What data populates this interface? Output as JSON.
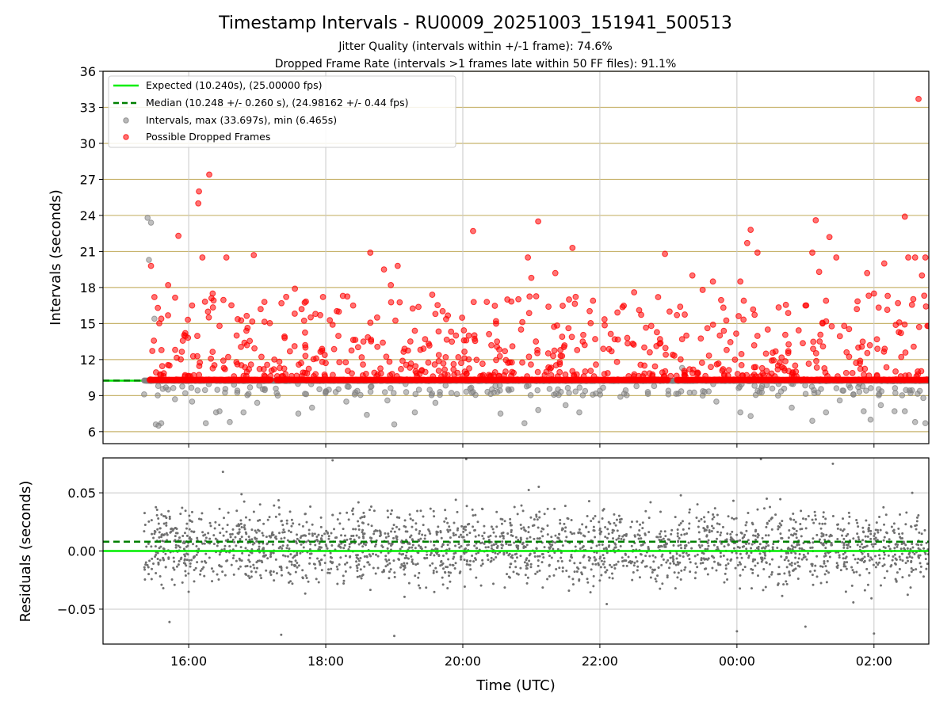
{
  "title": "Timestamp Intervals - RU0009_20251003_151941_500513",
  "subtitle1": "Jitter Quality (intervals within +/-1 frame): 74.6%",
  "subtitle2": "Dropped Frame Rate (intervals >1 frames late within 50 FF files): 91.1%",
  "colors": {
    "expected": "#00ee00",
    "median": "#008000",
    "normal_points": "#808080",
    "dropped_points": "#ff0000",
    "hgrid_top": "#c8b46e",
    "vgrid": "#c8c8c8"
  },
  "chart_data": [
    {
      "id": "intervals",
      "type": "scatter",
      "ylabel": "Intervals (seconds)",
      "xlim_hours": [
        14.75,
        26.8
      ],
      "ylim": [
        5.0,
        36.0
      ],
      "yticks": [
        6,
        9,
        12,
        15,
        18,
        21,
        24,
        27,
        30,
        33,
        36
      ],
      "ytick_labels": [
        "6",
        "9",
        "12",
        "15",
        "18",
        "21",
        "24",
        "27",
        "30",
        "33",
        "36"
      ],
      "expected_value": 10.24,
      "median_value": 10.248,
      "legend": {
        "position": "upper-left",
        "entries": [
          {
            "label": "Expected (10.240s), (25.00000 fps)",
            "style": "solid-line",
            "color": "#00ee00"
          },
          {
            "label": "Median (10.248 +/- 0.260 s), (24.98162 +/- 0.44 fps)",
            "style": "dashed-line",
            "color": "#008000"
          },
          {
            "label": "Intervals, max (33.697s), min (6.465s)",
            "style": "marker",
            "color": "#808080"
          },
          {
            "label": "Possible Dropped Frames",
            "style": "marker",
            "color": "#ff0000"
          }
        ]
      },
      "time_range_hours": [
        15.35,
        26.8
      ],
      "dropped_baseline_value": 10.29,
      "dropped_outliers": [
        [
          15.45,
          19.8
        ],
        [
          15.5,
          17.2
        ],
        [
          15.55,
          16.3
        ],
        [
          15.6,
          15.4
        ],
        [
          15.7,
          18.2
        ],
        [
          15.85,
          22.3
        ],
        [
          15.95,
          14.2
        ],
        [
          16.05,
          16.5
        ],
        [
          16.15,
          26.0
        ],
        [
          16.14,
          25.0
        ],
        [
          16.2,
          20.5
        ],
        [
          16.3,
          27.4
        ],
        [
          16.35,
          17.5
        ],
        [
          16.45,
          14.8
        ],
        [
          16.55,
          20.5
        ],
        [
          16.7,
          14.0
        ],
        [
          16.85,
          13.2
        ],
        [
          16.95,
          20.7
        ],
        [
          17.05,
          16.2
        ],
        [
          17.25,
          12.0
        ],
        [
          17.4,
          13.8
        ],
        [
          17.55,
          17.9
        ],
        [
          17.7,
          13.2
        ],
        [
          17.85,
          15.8
        ],
        [
          17.95,
          11.8
        ],
        [
          18.1,
          14.9
        ],
        [
          18.25,
          17.3
        ],
        [
          18.4,
          16.5
        ],
        [
          18.55,
          13.5
        ],
        [
          18.65,
          20.9
        ],
        [
          18.75,
          15.5
        ],
        [
          18.85,
          19.5
        ],
        [
          18.95,
          18.2
        ],
        [
          19.05,
          19.8
        ],
        [
          19.15,
          12.9
        ],
        [
          19.3,
          14.4
        ],
        [
          19.45,
          13.7
        ],
        [
          19.6,
          15.8
        ],
        [
          19.75,
          12.2
        ],
        [
          19.9,
          14.0
        ],
        [
          20.05,
          13.6
        ],
        [
          20.15,
          22.7
        ],
        [
          20.35,
          16.8
        ],
        [
          20.5,
          13.5
        ],
        [
          20.65,
          17.0
        ],
        [
          20.85,
          14.5
        ],
        [
          20.95,
          20.5
        ],
        [
          21.0,
          18.8
        ],
        [
          21.1,
          23.5
        ],
        [
          21.25,
          16.4
        ],
        [
          21.35,
          19.2
        ],
        [
          21.45,
          13.9
        ],
        [
          21.55,
          17.0
        ],
        [
          21.6,
          21.3
        ],
        [
          21.75,
          13.5
        ],
        [
          21.9,
          16.9
        ],
        [
          22.05,
          12.9
        ],
        [
          22.25,
          11.8
        ],
        [
          22.4,
          13.8
        ],
        [
          22.5,
          17.6
        ],
        [
          22.65,
          11.5
        ],
        [
          22.75,
          14.8
        ],
        [
          22.85,
          17.2
        ],
        [
          22.95,
          20.8
        ],
        [
          23.2,
          13.7
        ],
        [
          23.35,
          19.0
        ],
        [
          23.5,
          17.8
        ],
        [
          23.65,
          18.5
        ],
        [
          23.75,
          14.0
        ],
        [
          23.85,
          12.8
        ],
        [
          24.05,
          18.5
        ],
        [
          24.1,
          16.9
        ],
        [
          24.15,
          21.7
        ],
        [
          24.2,
          22.8
        ],
        [
          24.3,
          20.9
        ],
        [
          24.45,
          14.5
        ],
        [
          24.6,
          11.5
        ],
        [
          24.75,
          12.7
        ],
        [
          24.85,
          11.5
        ],
        [
          25.0,
          16.5
        ],
        [
          25.1,
          20.9
        ],
        [
          25.15,
          23.6
        ],
        [
          25.2,
          19.3
        ],
        [
          25.25,
          15.0
        ],
        [
          25.3,
          16.9
        ],
        [
          25.35,
          22.2
        ],
        [
          25.45,
          20.5
        ],
        [
          25.6,
          12.6
        ],
        [
          25.75,
          16.2
        ],
        [
          25.9,
          19.2
        ],
        [
          26.0,
          17.5
        ],
        [
          26.05,
          12.9
        ],
        [
          26.15,
          20.0
        ],
        [
          26.2,
          17.3
        ],
        [
          26.35,
          16.7
        ],
        [
          26.45,
          23.9
        ],
        [
          26.5,
          20.5
        ],
        [
          26.6,
          20.5
        ],
        [
          26.65,
          33.7
        ],
        [
          26.7,
          19.0
        ],
        [
          26.75,
          20.5
        ],
        [
          26.78,
          14.8
        ]
      ],
      "normal_outliers": [
        [
          15.4,
          23.8
        ],
        [
          15.45,
          23.4
        ],
        [
          15.42,
          20.3
        ],
        [
          15.5,
          15.4
        ],
        [
          15.52,
          6.6
        ],
        [
          15.56,
          6.5
        ],
        [
          15.6,
          6.7
        ],
        [
          15.35,
          9.1
        ],
        [
          15.7,
          9.5
        ],
        [
          15.8,
          8.7
        ],
        [
          15.95,
          9.2
        ],
        [
          16.05,
          8.5
        ],
        [
          16.25,
          6.7
        ],
        [
          16.4,
          7.6
        ],
        [
          16.45,
          7.7
        ],
        [
          16.6,
          6.8
        ],
        [
          16.8,
          7.6
        ],
        [
          17.0,
          8.4
        ],
        [
          17.3,
          9.0
        ],
        [
          17.6,
          7.5
        ],
        [
          17.8,
          8.0
        ],
        [
          18.0,
          9.3
        ],
        [
          18.3,
          8.5
        ],
        [
          18.6,
          7.4
        ],
        [
          18.9,
          8.6
        ],
        [
          19.0,
          6.6
        ],
        [
          19.3,
          7.6
        ],
        [
          19.6,
          8.4
        ],
        [
          20.15,
          9.3
        ],
        [
          20.55,
          7.5
        ],
        [
          20.9,
          6.7
        ],
        [
          21.1,
          7.8
        ],
        [
          21.5,
          8.2
        ],
        [
          21.7,
          7.6
        ],
        [
          22.0,
          9.4
        ],
        [
          22.3,
          8.9
        ],
        [
          22.7,
          9.3
        ],
        [
          23.0,
          9.1
        ],
        [
          23.2,
          11.3
        ],
        [
          23.5,
          9.0
        ],
        [
          23.7,
          8.5
        ],
        [
          24.05,
          7.6
        ],
        [
          24.2,
          7.3
        ],
        [
          24.6,
          9.0
        ],
        [
          24.8,
          8.0
        ],
        [
          25.1,
          6.9
        ],
        [
          25.3,
          7.6
        ],
        [
          25.5,
          8.6
        ],
        [
          25.7,
          9.1
        ],
        [
          25.85,
          7.7
        ],
        [
          25.95,
          7.0
        ],
        [
          26.1,
          8.2
        ],
        [
          26.3,
          7.7
        ],
        [
          26.45,
          7.7
        ],
        [
          26.6,
          6.8
        ],
        [
          26.75,
          6.7
        ],
        [
          26.72,
          8.8
        ]
      ]
    },
    {
      "id": "residuals",
      "type": "scatter",
      "ylabel": "Residuals (seconds)",
      "xlabel": "Time (UTC)",
      "xlim_hours": [
        14.75,
        26.8
      ],
      "ylim": [
        -0.08,
        0.08
      ],
      "yticks": [
        -0.05,
        0.0,
        0.05
      ],
      "ytick_labels": [
        "−0.05",
        "0.00",
        "0.05"
      ],
      "xticks_hours": [
        16,
        18,
        20,
        22,
        24,
        26
      ],
      "xtick_labels": [
        "16:00",
        "18:00",
        "20:00",
        "22:00",
        "00:00",
        "02:00"
      ],
      "expected_value": 0.0,
      "median_value": 0.008,
      "residual_center": 0.004,
      "residual_spread": 0.03,
      "time_range_hours": [
        15.35,
        26.8
      ],
      "residual_extremes": [
        [
          15.72,
          -0.061
        ],
        [
          17.35,
          -0.072
        ],
        [
          19.0,
          -0.073
        ],
        [
          24.0,
          -0.069
        ],
        [
          25.0,
          -0.065
        ],
        [
          26.0,
          -0.071
        ],
        [
          16.5,
          0.068
        ],
        [
          18.1,
          0.078
        ],
        [
          20.05,
          0.079
        ],
        [
          24.35,
          0.079
        ],
        [
          25.4,
          0.075
        ]
      ]
    }
  ]
}
